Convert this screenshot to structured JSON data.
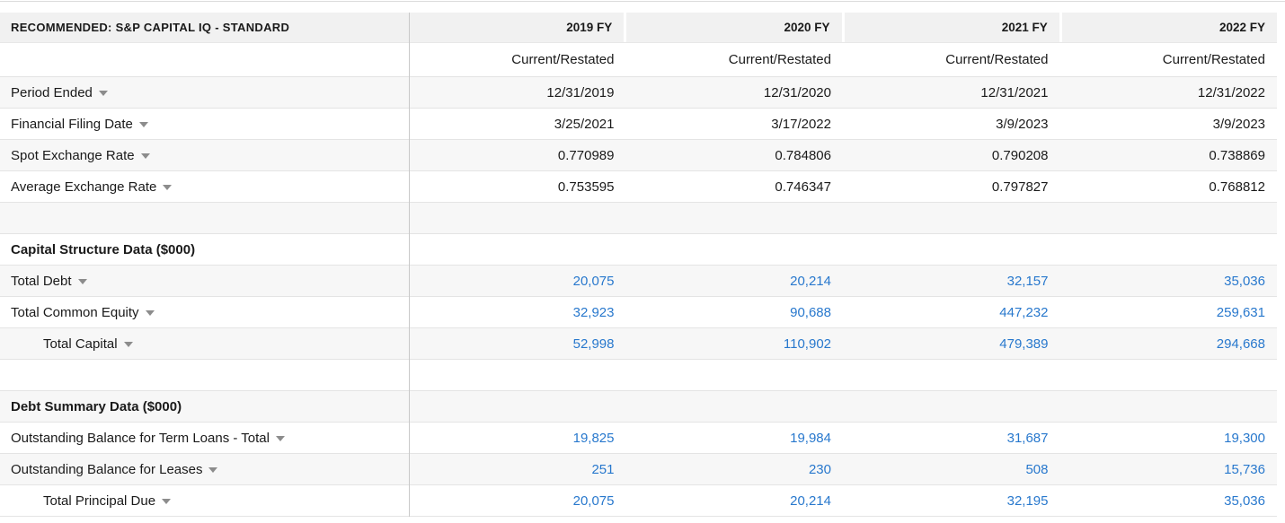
{
  "table": {
    "corner_title": "RECOMMENDED: S&P CAPITAL IQ - STANDARD",
    "year_columns": [
      "2019 FY",
      "2020 FY",
      "2021 FY",
      "2022 FY"
    ],
    "subheader_label": "Current/Restated",
    "rows": [
      {
        "type": "data",
        "label": "Period Ended",
        "dropdown": true,
        "link": false,
        "striped": true,
        "indent": false,
        "values": [
          "12/31/2019",
          "12/31/2020",
          "12/31/2021",
          "12/31/2022"
        ]
      },
      {
        "type": "data",
        "label": "Financial Filing Date",
        "dropdown": true,
        "link": false,
        "striped": false,
        "indent": false,
        "values": [
          "3/25/2021",
          "3/17/2022",
          "3/9/2023",
          "3/9/2023"
        ]
      },
      {
        "type": "data",
        "label": "Spot Exchange Rate",
        "dropdown": true,
        "link": false,
        "striped": true,
        "indent": false,
        "values": [
          "0.770989",
          "0.784806",
          "0.790208",
          "0.738869"
        ]
      },
      {
        "type": "data",
        "label": "Average Exchange Rate",
        "dropdown": true,
        "link": false,
        "striped": false,
        "indent": false,
        "values": [
          "0.753595",
          "0.746347",
          "0.797827",
          "0.768812"
        ]
      },
      {
        "type": "empty",
        "label": "",
        "dropdown": false,
        "link": false,
        "striped": true,
        "indent": false,
        "values": [
          "",
          "",
          "",
          ""
        ]
      },
      {
        "type": "section",
        "label": "Capital Structure Data ($000)",
        "dropdown": false,
        "link": false,
        "striped": false,
        "indent": false,
        "values": [
          "",
          "",
          "",
          ""
        ]
      },
      {
        "type": "data",
        "label": "Total Debt",
        "dropdown": true,
        "link": true,
        "striped": true,
        "indent": false,
        "values": [
          "20,075",
          "20,214",
          "32,157",
          "35,036"
        ]
      },
      {
        "type": "data",
        "label": "Total Common Equity",
        "dropdown": true,
        "link": true,
        "striped": false,
        "indent": false,
        "values": [
          "32,923",
          "90,688",
          "447,232",
          "259,631"
        ]
      },
      {
        "type": "data",
        "label": "Total Capital",
        "dropdown": true,
        "link": true,
        "striped": true,
        "indent": true,
        "values": [
          "52,998",
          "110,902",
          "479,389",
          "294,668"
        ]
      },
      {
        "type": "empty",
        "label": "",
        "dropdown": false,
        "link": false,
        "striped": false,
        "indent": false,
        "values": [
          "",
          "",
          "",
          ""
        ]
      },
      {
        "type": "section",
        "label": "Debt Summary Data ($000)",
        "dropdown": false,
        "link": false,
        "striped": true,
        "indent": false,
        "values": [
          "",
          "",
          "",
          ""
        ]
      },
      {
        "type": "data",
        "label": "Outstanding Balance for Term Loans - Total",
        "dropdown": true,
        "link": true,
        "striped": false,
        "indent": false,
        "values": [
          "19,825",
          "19,984",
          "31,687",
          "19,300"
        ]
      },
      {
        "type": "data",
        "label": "Outstanding Balance for Leases",
        "dropdown": true,
        "link": true,
        "striped": true,
        "indent": false,
        "values": [
          "251",
          "230",
          "508",
          "15,736"
        ]
      },
      {
        "type": "data",
        "label": "Total Principal Due",
        "dropdown": true,
        "link": true,
        "striped": false,
        "indent": true,
        "values": [
          "20,075",
          "20,214",
          "32,195",
          "35,036"
        ]
      }
    ]
  },
  "icons": {
    "dropdown": "triangle-down"
  },
  "colors": {
    "link_blue": "#2878cd",
    "header_bg": "#f1f1f1",
    "stripe_bg": "#f7f7f7",
    "row_border": "#e4e4e4",
    "column_divider": "#c9c9c9",
    "text": "#1a1a1a"
  }
}
